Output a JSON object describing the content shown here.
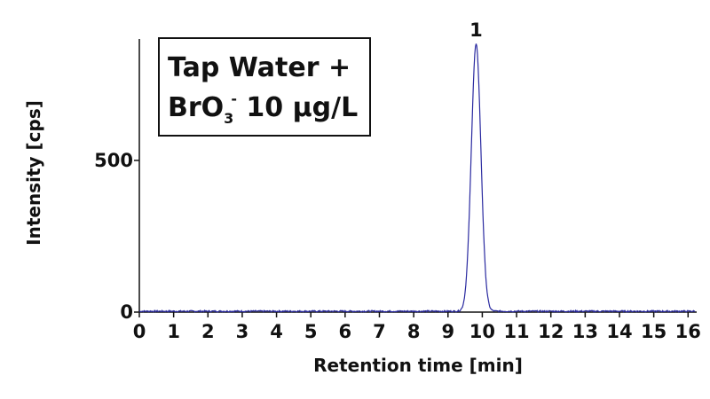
{
  "chart_data": {
    "type": "line",
    "title_lines": {
      "line1": "Tap Water +",
      "line2_prefix": "BrO",
      "line2_subscript": "3",
      "line2_superscript": "-",
      "line2_suffix": " 10 µg/L"
    },
    "xlabel": "Retention time [min]",
    "ylabel": "Intensity [cps]",
    "xlim": [
      0,
      16.2
    ],
    "ylim": [
      0,
      900
    ],
    "x_ticks": [
      "0",
      "1",
      "2",
      "3",
      "4",
      "5",
      "6",
      "7",
      "8",
      "9",
      "10",
      "11",
      "12",
      "13",
      "14",
      "15",
      "16"
    ],
    "y_ticks": [
      "0",
      "500"
    ],
    "grid": false,
    "series": [
      {
        "color": "#2a2aa0",
        "baseline": 3,
        "peak_center": 9.82,
        "peak_height": 880,
        "peak_sigma": 0.14
      }
    ],
    "annotations": [
      {
        "text": "1",
        "x": 9.82,
        "y": 880
      }
    ]
  }
}
